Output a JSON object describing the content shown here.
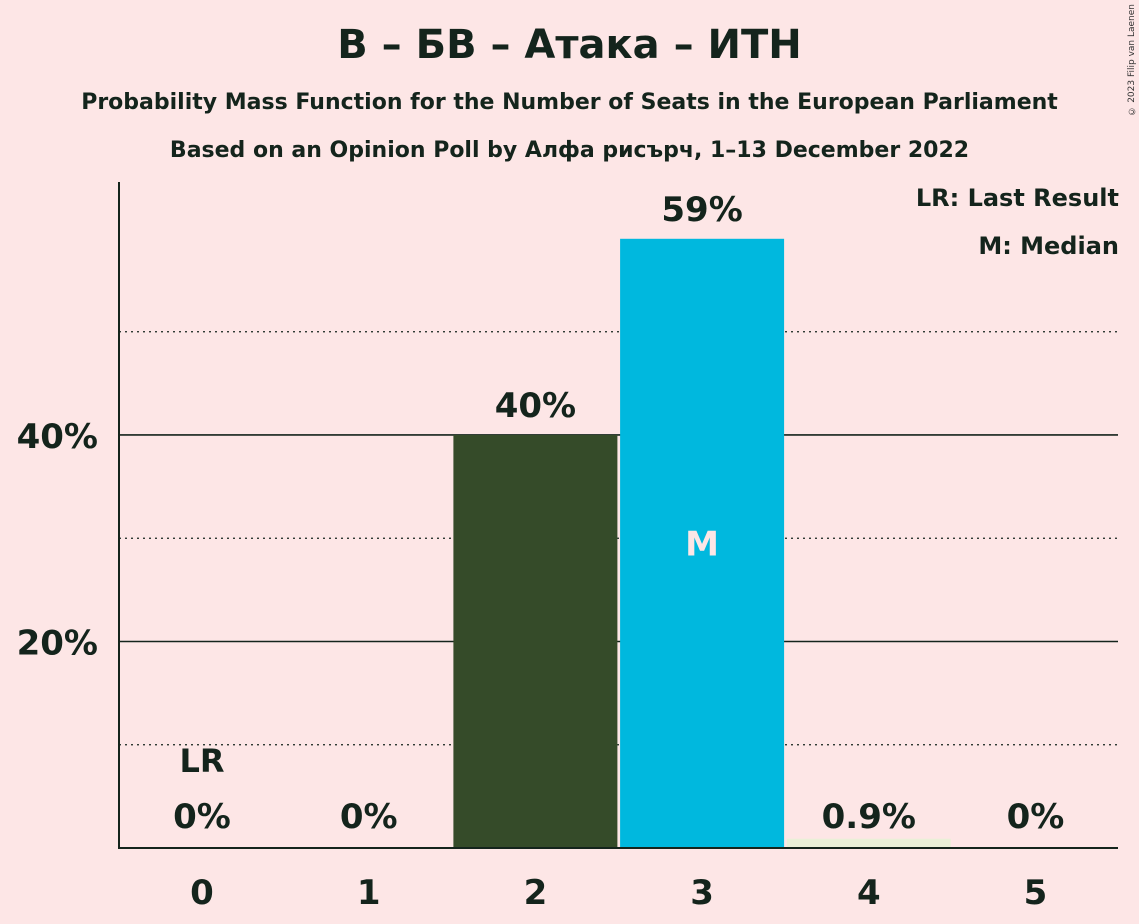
{
  "header": {
    "title": "В – БВ – Атака – ИТН",
    "subtitle1": "Probability Mass Function for the Number of Seats in the European Parliament",
    "subtitle2": "Based on an Opinion Poll by Алфа рисърч, 1–13 December 2022",
    "copyright": "© 2023 Filip van Laenen"
  },
  "legend": {
    "last_result": "LR: Last Result",
    "median": "M: Median"
  },
  "colors": {
    "background": "#fde6e6",
    "bar_dark": "#354b29",
    "bar_median": "#00b8de",
    "bar_light": "#eaf0d8",
    "text": "#14241c"
  },
  "chart_data": {
    "type": "bar",
    "categories": [
      "0",
      "1",
      "2",
      "3",
      "4",
      "5"
    ],
    "values": [
      0,
      0,
      40,
      59,
      0.9,
      0
    ],
    "value_labels": [
      "0%",
      "0%",
      "40%",
      "59%",
      "0.9%",
      "0%"
    ],
    "bar_colors": [
      "#354b29",
      "#354b29",
      "#354b29",
      "#00b8de",
      "#eaf0d8",
      "#354b29"
    ],
    "ylim": [
      0,
      64.5
    ],
    "yticks_major": [
      20,
      40
    ],
    "ytick_labels": [
      "20%",
      "40%"
    ],
    "yticks_minor": [
      10,
      30,
      50
    ],
    "last_result_index": 0,
    "last_result_label": "LR",
    "median_index": 3,
    "median_label": "M",
    "xlabel": "",
    "ylabel": "",
    "grid": true
  }
}
